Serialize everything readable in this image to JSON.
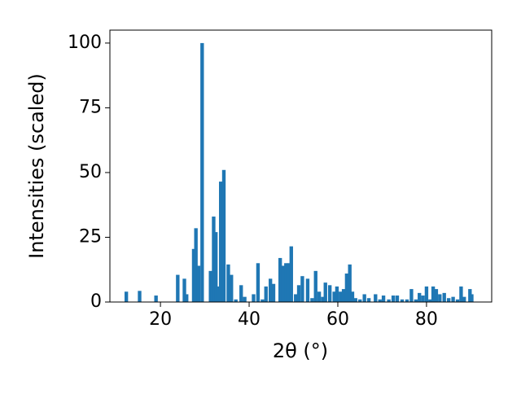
{
  "chart_data": {
    "type": "bar",
    "xlabel": "2θ (°)",
    "ylabel": "Intensities (scaled)",
    "x": [
      12.3,
      15.3,
      19.0,
      23.9,
      25.4,
      25.9,
      27.5,
      28.0,
      28.6,
      29.4,
      31.3,
      32.0,
      32.5,
      33.0,
      33.6,
      34.3,
      35.3,
      36.0,
      37.0,
      38.2,
      39.0,
      41.0,
      42.0,
      43.0,
      43.8,
      44.8,
      45.5,
      47.0,
      47.6,
      48.3,
      49.0,
      49.5,
      50.5,
      51.2,
      52.0,
      53.2,
      54.2,
      55.0,
      55.8,
      56.6,
      57.2,
      58.2,
      59.2,
      59.8,
      60.6,
      61.3,
      62.0,
      62.7,
      63.3,
      64.0,
      65.0,
      66.0,
      67.0,
      68.5,
      69.5,
      70.3,
      71.5,
      72.5,
      73.4,
      74.5,
      75.6,
      76.6,
      77.6,
      78.4,
      79.2,
      80.0,
      80.8,
      81.5,
      82.2,
      83.0,
      84.0,
      85.0,
      86.0,
      87.0,
      87.8,
      88.5,
      89.8,
      90.2
    ],
    "values": [
      4,
      4.3,
      2.5,
      10.5,
      9,
      3,
      20.5,
      28.5,
      14,
      100,
      12,
      33,
      27,
      6,
      46.5,
      51,
      14.5,
      10.5,
      1,
      6.5,
      2,
      3,
      15,
      1,
      6,
      9,
      7,
      17,
      14,
      15,
      15,
      21.5,
      3,
      6.5,
      10,
      9,
      1.5,
      12,
      4,
      2,
      7.5,
      6.5,
      4,
      6,
      4,
      5,
      11,
      14.5,
      4,
      1.5,
      1,
      3,
      1.5,
      3,
      1,
      2.5,
      1,
      2.5,
      2.5,
      1,
      1,
      5,
      1,
      3.5,
      2.5,
      6,
      1,
      6,
      5,
      3,
      3.5,
      1.5,
      2,
      1,
      6,
      2,
      5,
      3
    ],
    "color": "#1f77b4",
    "xlim": [
      8.6,
      94.7
    ],
    "ylim": [
      0,
      105
    ],
    "xticks": [
      20,
      40,
      60,
      80
    ],
    "yticks": [
      0,
      25,
      50,
      75,
      100
    ]
  }
}
